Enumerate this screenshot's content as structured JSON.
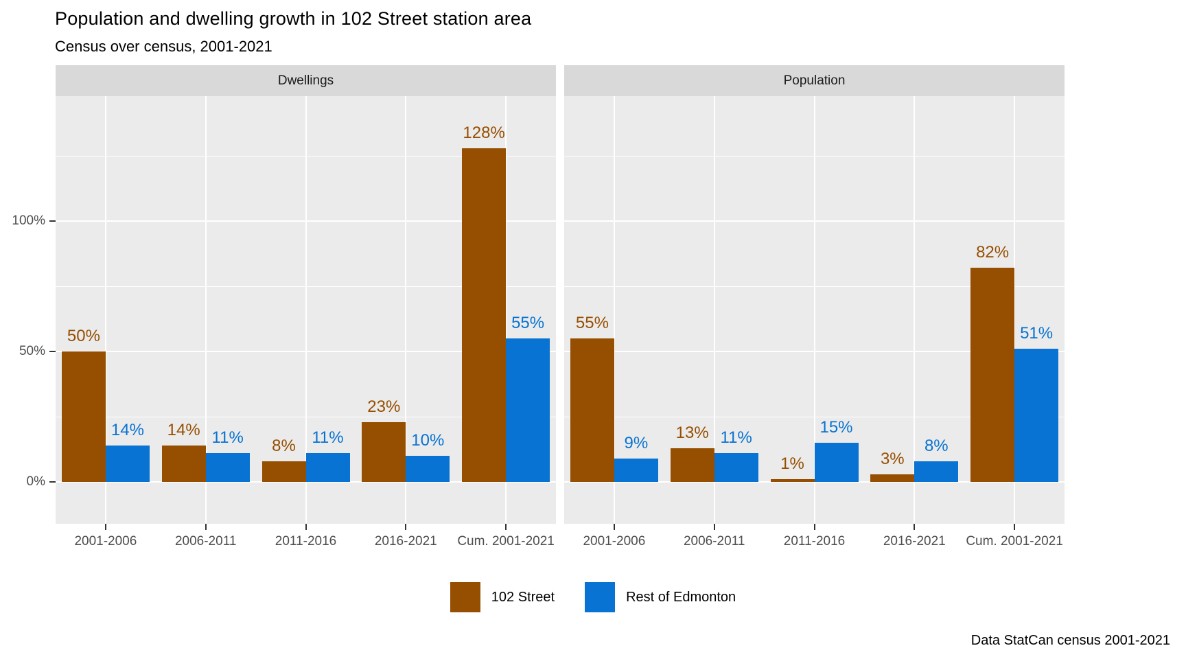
{
  "chart": {
    "title": "Population and dwelling growth in 102 Street station area",
    "subtitle": "Census over census, 2001-2021",
    "caption": "Data StatCan census 2001-2021"
  },
  "chart_data": {
    "type": "bar",
    "categories": [
      "2001-2006",
      "2006-2011",
      "2011-2016",
      "2016-2021",
      "Cum. 2001-2021"
    ],
    "facets": [
      {
        "label": "Dwellings",
        "series": [
          {
            "name": "102 Street",
            "color": "#964F00",
            "values": [
              50,
              14,
              8,
              23,
              128
            ],
            "labels": [
              "50%",
              "14%",
              "8%",
              "23%",
              "128%"
            ]
          },
          {
            "name": "Rest of Edmonton",
            "color": "#0873D2",
            "values": [
              14,
              11,
              11,
              10,
              55
            ],
            "labels": [
              "14%",
              "11%",
              "11%",
              "10%",
              "55%"
            ]
          }
        ]
      },
      {
        "label": "Population",
        "series": [
          {
            "name": "102 Street",
            "color": "#964F00",
            "values": [
              55,
              13,
              1,
              3,
              82
            ],
            "labels": [
              "55%",
              "13%",
              "1%",
              "3%",
              "82%"
            ]
          },
          {
            "name": "Rest of Edmonton",
            "color": "#0873D2",
            "values": [
              9,
              11,
              15,
              8,
              51
            ],
            "labels": [
              "9%",
              "11%",
              "15%",
              "8%",
              "51%"
            ]
          }
        ]
      }
    ],
    "legend": [
      {
        "label": "102 Street",
        "color": "#964F00"
      },
      {
        "label": "Rest of Edmonton",
        "color": "#0873D2"
      }
    ],
    "y_axis": {
      "ticks": [
        {
          "value": 0,
          "label": "0%"
        },
        {
          "value": 50,
          "label": "50%"
        },
        {
          "value": 100,
          "label": "100%"
        }
      ],
      "major_grid": [
        0,
        50,
        100
      ],
      "minor_grid": [
        25,
        75,
        125
      ],
      "ylim": [
        -16,
        148
      ]
    },
    "style": {
      "panel_bg": "#EBEBEB",
      "strip_bg": "#D9D9D9",
      "grid_color": "#FFFFFF",
      "axis_text_color": "#4D4D4D",
      "legend_position": "bottom"
    }
  }
}
